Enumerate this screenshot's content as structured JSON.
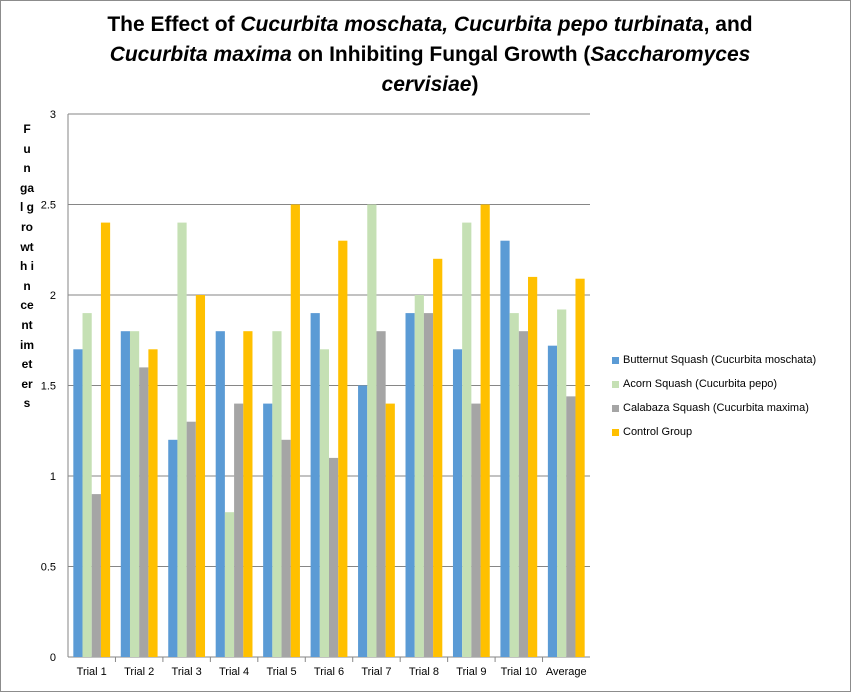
{
  "chart_data": {
    "type": "bar",
    "title": "The Effect of Cucurbita moschata, Cucurbita pepo turbinata, and Cucurbita maxima on Inhibiting Fungal Growth (Saccharomyces cervisiae)",
    "title_parts": [
      {
        "text": "The Effect of ",
        "italic": false
      },
      {
        "text": "Cucurbita moschata, Cucurbita pepo turbinata",
        "italic": true
      },
      {
        "text": ", and ",
        "italic": false
      },
      {
        "text": "Cucurbita maxima",
        "italic": true
      },
      {
        "text": " on Inhibiting Fungal Growth (",
        "italic": false
      },
      {
        "text": "Saccharomyces cervisiae",
        "italic": true
      },
      {
        "text": ")",
        "italic": false
      }
    ],
    "ylabel": "Fungal growth in centimeters",
    "xlabel": "",
    "ylim": [
      0,
      3
    ],
    "yticks": [
      0,
      0.5,
      1,
      1.5,
      2,
      2.5,
      3
    ],
    "grid": true,
    "legend_position": "right",
    "categories": [
      "Trial 1",
      "Trial 2",
      "Trial 3",
      "Trial 4",
      "Trial 5",
      "Trial 6",
      "Trial 7",
      "Trial 8",
      "Trial 9",
      "Trial 10",
      "Average"
    ],
    "series": [
      {
        "name": "Butternut Squash (Cucurbita moschata)",
        "color": "#5b9bd5",
        "values": [
          1.7,
          1.8,
          1.2,
          1.8,
          1.4,
          1.9,
          1.5,
          1.9,
          1.7,
          2.3,
          1.72
        ]
      },
      {
        "name": "Acorn Squash (Cucurbita pepo)",
        "color": "#c5e0b4",
        "values": [
          1.9,
          1.8,
          2.4,
          0.8,
          1.8,
          1.7,
          2.5,
          2.0,
          2.4,
          1.9,
          1.92
        ]
      },
      {
        "name": "Calabaza Squash (Cucurbita maxima)",
        "color": "#a5a5a5",
        "values": [
          0.9,
          1.6,
          1.3,
          1.4,
          1.2,
          1.1,
          1.8,
          1.9,
          1.4,
          1.8,
          1.44
        ]
      },
      {
        "name": "Control Group",
        "color": "#ffc000",
        "values": [
          2.4,
          1.7,
          2.0,
          1.8,
          2.5,
          2.3,
          1.4,
          2.2,
          2.5,
          2.1,
          2.09
        ]
      }
    ]
  }
}
